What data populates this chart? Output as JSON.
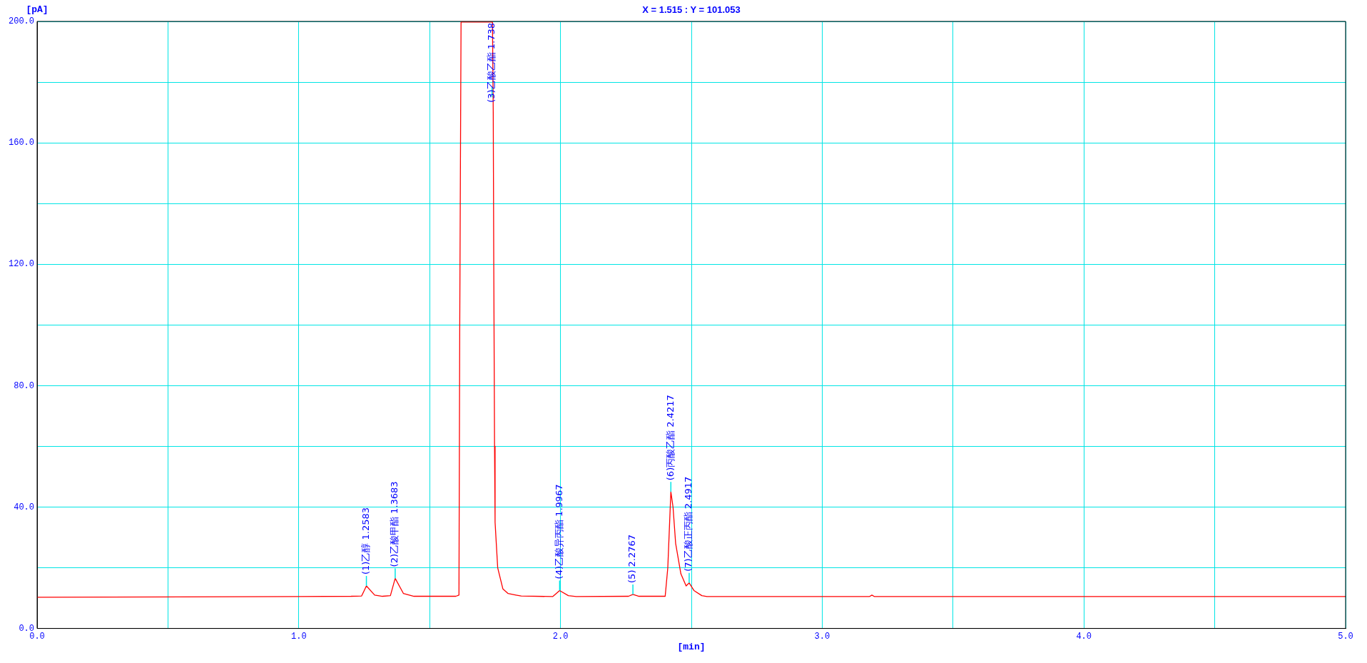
{
  "chart_data": {
    "type": "line",
    "xlabel": "[min]",
    "ylabel": "[pA]",
    "annotations": [
      "X = 1.515 : Y = 101.053",
      {
        "text": "(1)乙醇 1.2583",
        "x": 1.2583,
        "y": 14
      },
      {
        "text": "(2)乙酸甲酯 1.3683",
        "x": 1.3683,
        "y": 16.5
      },
      {
        "text": "(3)乙酸乙酯 1.738",
        "x": 1.7383,
        "y": 175
      },
      {
        "text": "(4)乙酸异丙酯 1.9967",
        "x": 1.9967,
        "y": 12.5
      },
      {
        "text": "(5) 2.2767",
        "x": 2.2767,
        "y": 11.2
      },
      {
        "text": "(6)丙酸乙酯 2.4217",
        "x": 2.4217,
        "y": 45
      },
      {
        "text": "(7)乙酸正丙酯 2.4917",
        "x": 2.4917,
        "y": 15
      }
    ],
    "series": [
      {
        "color": "#ff0000",
        "x": [
          0,
          1.0,
          1.2,
          1.24,
          1.2583,
          1.29,
          1.32,
          1.35,
          1.3683,
          1.4,
          1.44,
          1.6,
          1.612,
          1.615,
          1.617,
          1.62,
          1.74,
          1.743,
          1.745,
          1.748,
          1.75,
          1.76,
          1.78,
          1.8,
          1.83,
          1.85,
          1.97,
          1.9967,
          2.03,
          2.06,
          2.26,
          2.2767,
          2.3,
          2.4,
          2.41,
          2.4217,
          2.43,
          2.44,
          2.46,
          2.48,
          2.4917,
          2.51,
          2.54,
          2.56,
          3.18,
          3.19,
          3.2,
          5.0
        ],
        "values": [
          10.3,
          10.5,
          10.6,
          10.7,
          14,
          11,
          10.6,
          10.8,
          16.5,
          11.5,
          10.6,
          10.6,
          11,
          100,
          140,
          199.8,
          199.8,
          170,
          120,
          60,
          35,
          20,
          13,
          11.5,
          11,
          10.7,
          10.5,
          12.5,
          10.8,
          10.5,
          10.6,
          11.2,
          10.6,
          10.6,
          20,
          45,
          40,
          28,
          18,
          14,
          15,
          12.5,
          10.8,
          10.5,
          10.5,
          11,
          10.5,
          10.5
        ]
      }
    ],
    "xlim": [
      0,
      5
    ],
    "xticks": [
      {
        "value": 0,
        "label": "0.0"
      },
      {
        "value": 0.5,
        "label": null
      },
      {
        "value": 1,
        "label": "1.0"
      },
      {
        "value": 1.5,
        "label": null
      },
      {
        "value": 2,
        "label": "2.0"
      },
      {
        "value": 2.5,
        "label": null
      },
      {
        "value": 3,
        "label": "3.0"
      },
      {
        "value": 3.5,
        "label": null
      },
      {
        "value": 4,
        "label": "4.0"
      },
      {
        "value": 4.5,
        "label": null
      },
      {
        "value": 5,
        "label": "5.0"
      }
    ],
    "ylim": [
      0,
      200
    ],
    "yticks": [
      {
        "value": 0,
        "label": "0.0"
      },
      {
        "value": 20,
        "label": null
      },
      {
        "value": 40,
        "label": "40.0"
      },
      {
        "value": 60,
        "label": null
      },
      {
        "value": 80,
        "label": "80.0"
      },
      {
        "value": 100,
        "label": null
      },
      {
        "value": 120,
        "label": "120.0"
      },
      {
        "value": 140,
        "label": null
      },
      {
        "value": 160,
        "label": "160.0"
      },
      {
        "value": 180,
        "label": null
      },
      {
        "value": 200,
        "label": "200.0"
      }
    ],
    "grid": true,
    "legend": false,
    "marker": "none",
    "line_style": "solid"
  }
}
